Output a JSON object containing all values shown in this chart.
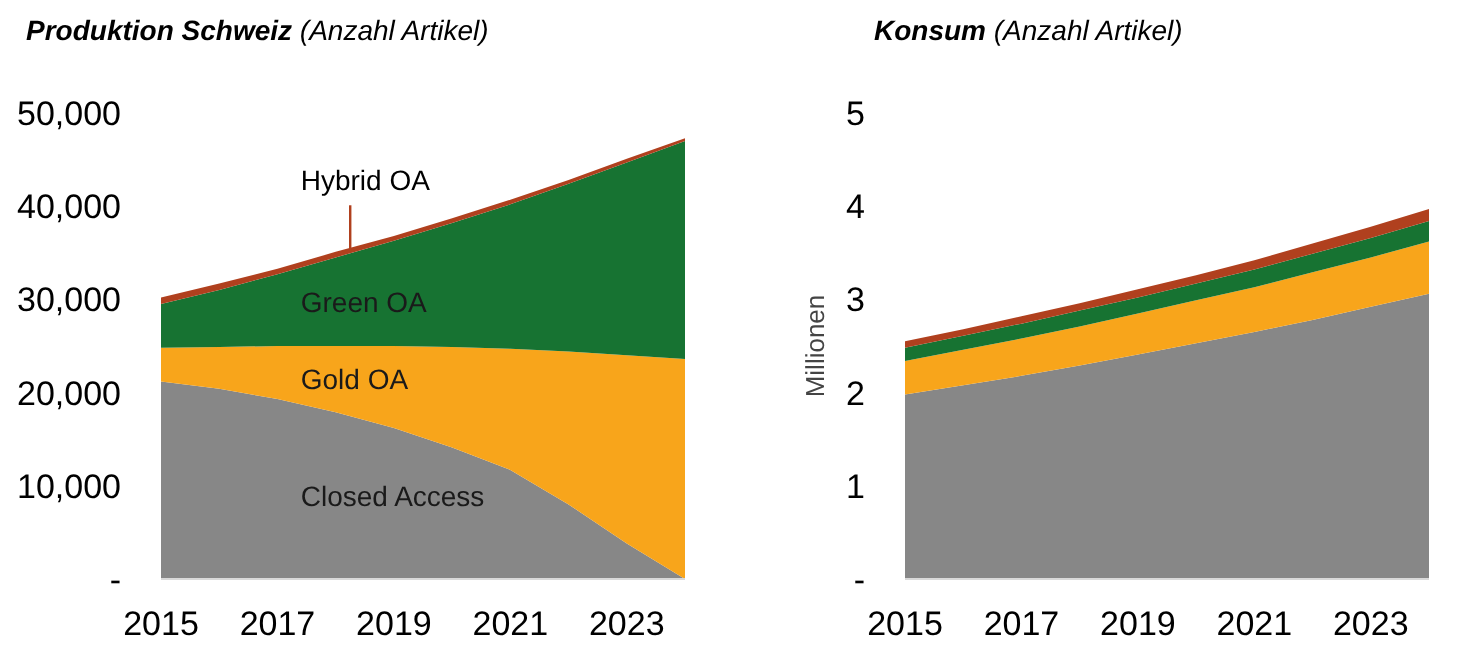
{
  "chart_data": [
    {
      "type": "area",
      "stacked": true,
      "title": "Produktion Schweiz",
      "subtitle": "(Anzahl Artikel)",
      "x": [
        2015,
        2016,
        2017,
        2018,
        2019,
        2020,
        2021,
        2022,
        2023,
        2024
      ],
      "xlim": [
        2015,
        2024
      ],
      "xticks": [
        2015,
        2017,
        2019,
        2021,
        2023
      ],
      "ylim": [
        0,
        50000
      ],
      "yticks": [
        {
          "value": 0,
          "label": "-"
        },
        {
          "value": 10000,
          "label": "10,000"
        },
        {
          "value": 20000,
          "label": "20,000"
        },
        {
          "value": 30000,
          "label": "30,000"
        },
        {
          "value": 40000,
          "label": "40,000"
        },
        {
          "value": 50000,
          "label": "50,000"
        }
      ],
      "grid": false,
      "legend": false,
      "series": [
        {
          "name": "Closed Access",
          "color": "#878787",
          "values": [
            21200,
            20400,
            19300,
            17900,
            16200,
            14100,
            11700,
            8000,
            3800,
            0
          ]
        },
        {
          "name": "Gold OA",
          "color": "#f8a51b",
          "values": [
            3600,
            4500,
            5700,
            7100,
            8800,
            10800,
            13000,
            16400,
            20200,
            23600
          ]
        },
        {
          "name": "Green OA",
          "color": "#177332",
          "values": [
            4700,
            6100,
            7700,
            9500,
            11300,
            13300,
            15500,
            18000,
            20700,
            23400
          ]
        },
        {
          "name": "Hybrid OA",
          "color": "#b0401e",
          "values": [
            700,
            700,
            600,
            600,
            500,
            500,
            500,
            400,
            400,
            300
          ]
        }
      ]
    },
    {
      "type": "area",
      "stacked": true,
      "title": "Konsum",
      "subtitle": "(Anzahl Artikel)",
      "ylabel": "Millionen",
      "x": [
        2015,
        2016,
        2017,
        2018,
        2019,
        2020,
        2021,
        2022,
        2023,
        2024
      ],
      "xlim": [
        2015,
        2024
      ],
      "xticks": [
        2015,
        2017,
        2019,
        2021,
        2023
      ],
      "ylim": [
        0,
        5
      ],
      "yticks": [
        {
          "value": 0,
          "label": "-"
        },
        1,
        2,
        3,
        4,
        5
      ],
      "grid": false,
      "legend": false,
      "series": [
        {
          "color": "#878787",
          "values": [
            1.98,
            2.08,
            2.18,
            2.29,
            2.41,
            2.53,
            2.65,
            2.78,
            2.92,
            3.06
          ]
        },
        {
          "color": "#f8a51b",
          "values": [
            0.36,
            0.38,
            0.4,
            0.42,
            0.44,
            0.46,
            0.48,
            0.51,
            0.53,
            0.56
          ]
        },
        {
          "color": "#177332",
          "values": [
            0.14,
            0.15,
            0.16,
            0.17,
            0.17,
            0.18,
            0.19,
            0.2,
            0.21,
            0.22
          ]
        },
        {
          "color": "#b0401e",
          "values": [
            0.07,
            0.07,
            0.08,
            0.08,
            0.09,
            0.09,
            0.1,
            0.11,
            0.12,
            0.13
          ]
        }
      ]
    }
  ]
}
